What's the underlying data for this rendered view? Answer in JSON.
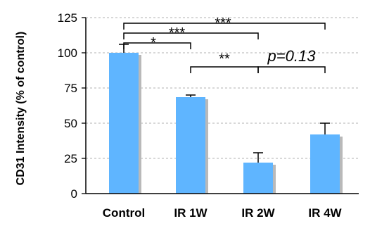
{
  "chart_data": {
    "type": "bar",
    "categories": [
      "Control",
      "IR 1W",
      "IR 2W",
      "IR 4W"
    ],
    "values": [
      100,
      68.5,
      22,
      42
    ],
    "errors": [
      6,
      1.5,
      7,
      8
    ],
    "ylabel": "CD31 Intensity (% of control)",
    "ylim": [
      0,
      125
    ],
    "yticks": [
      0,
      25,
      50,
      75,
      100,
      125
    ],
    "grid": true,
    "bar_color": "#5fb5ff",
    "bar_shadow_color": "#b9b9b9",
    "significance": [
      {
        "from": 0,
        "to": 1,
        "label": "*",
        "y": 107
      },
      {
        "from": 0,
        "to": 2,
        "label": "***",
        "y": 114
      },
      {
        "from": 0,
        "to": 3,
        "label": "***",
        "y": 121
      },
      {
        "from": 1,
        "to": 2,
        "label": "**",
        "y": 90
      },
      {
        "from": 2,
        "to": 3,
        "label": "p=0.13",
        "y": 90
      }
    ]
  }
}
